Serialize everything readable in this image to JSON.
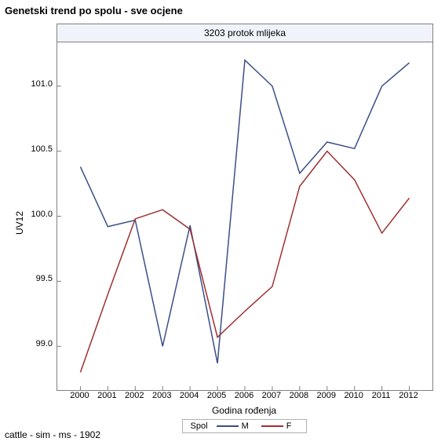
{
  "title": "Genetski trend po spolu - sve ocjene",
  "subtitle": "3203 protok mlijeka",
  "footer": "cattle - sim - ms - 1902",
  "ylabel": "UV12",
  "xlabel": "Godina rođenja",
  "legend_label": "Spol",
  "chart": {
    "type": "line",
    "background_color": "#ffffff",
    "subtitle_bg": "#f0f4fa",
    "border_color": "#808080",
    "grid_color": "#e6e6e6",
    "xlim": [
      1999.5,
      2012.5
    ],
    "ylim": [
      98.7,
      101.3
    ],
    "xticks": [
      2000,
      2001,
      2002,
      2003,
      2004,
      2005,
      2006,
      2007,
      2008,
      2009,
      2010,
      2011,
      2012
    ],
    "yticks": [
      99.0,
      99.5,
      100.0,
      100.5,
      101.0
    ],
    "series": [
      {
        "name": "M",
        "color": "#3b4e87",
        "width": 1.5,
        "x": [
          2000,
          2001,
          2002,
          2003,
          2004,
          2005,
          2006,
          2007,
          2008,
          2009,
          2010,
          2011,
          2012
        ],
        "y": [
          100.38,
          99.92,
          99.97,
          99.0,
          99.93,
          98.87,
          101.2,
          101.0,
          100.33,
          100.57,
          100.52,
          101.0,
          101.18
        ]
      },
      {
        "name": "F",
        "color": "#a03030",
        "width": 1.5,
        "x": [
          2000,
          2001,
          2002,
          2003,
          2004,
          2005,
          2006,
          2007,
          2008,
          2009,
          2010,
          2011,
          2012
        ],
        "y": [
          98.8,
          99.4,
          99.98,
          100.05,
          99.9,
          99.07,
          99.27,
          99.46,
          100.23,
          100.5,
          100.28,
          99.87,
          100.14
        ]
      }
    ]
  }
}
